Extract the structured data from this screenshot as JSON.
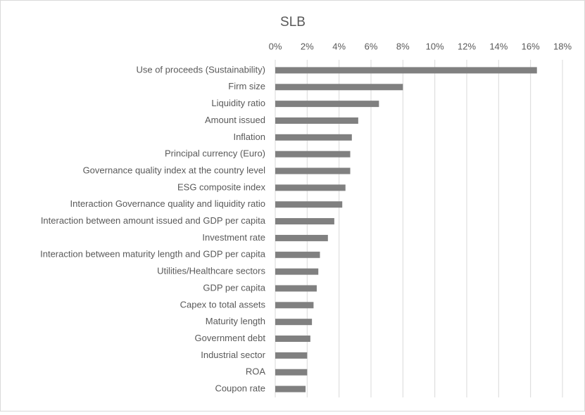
{
  "chart_data": {
    "type": "hbar",
    "title": "SLB",
    "categories": [
      "Use of proceeds (Sustainability)",
      "Firm size",
      "Liquidity ratio",
      "Amount issued",
      "Inflation",
      "Principal currency (Euro)",
      "Governance quality index at the country level",
      "ESG composite index",
      "Interaction Governance quality and liquidity ratio",
      "Interaction between amount issued and GDP per capita",
      "Investment rate",
      "Interaction between maturity length and GDP per capita",
      "Utilities/Healthcare sectors",
      "GDP per capita",
      "Capex to total assets",
      "Maturity length",
      "Government debt",
      "Industrial sector",
      "ROA",
      "Coupon rate"
    ],
    "values": [
      16.4,
      8.0,
      6.5,
      5.2,
      4.8,
      4.7,
      4.7,
      4.4,
      4.2,
      3.7,
      3.3,
      2.8,
      2.7,
      2.6,
      2.4,
      2.3,
      2.2,
      2.0,
      2.0,
      1.9
    ],
    "color": "#808080",
    "xlim": [
      0,
      18
    ],
    "xticks": [
      {
        "value": 0,
        "label": "0%"
      },
      {
        "value": 2,
        "label": "2%"
      },
      {
        "value": 4,
        "label": "4%"
      },
      {
        "value": 6,
        "label": "6%"
      },
      {
        "value": 8,
        "label": "8%"
      },
      {
        "value": 10,
        "label": "10%"
      },
      {
        "value": 12,
        "label": "12%"
      },
      {
        "value": 14,
        "label": "14%"
      },
      {
        "value": 16,
        "label": "16%"
      },
      {
        "value": 18,
        "label": "18%"
      }
    ],
    "grid": true
  }
}
